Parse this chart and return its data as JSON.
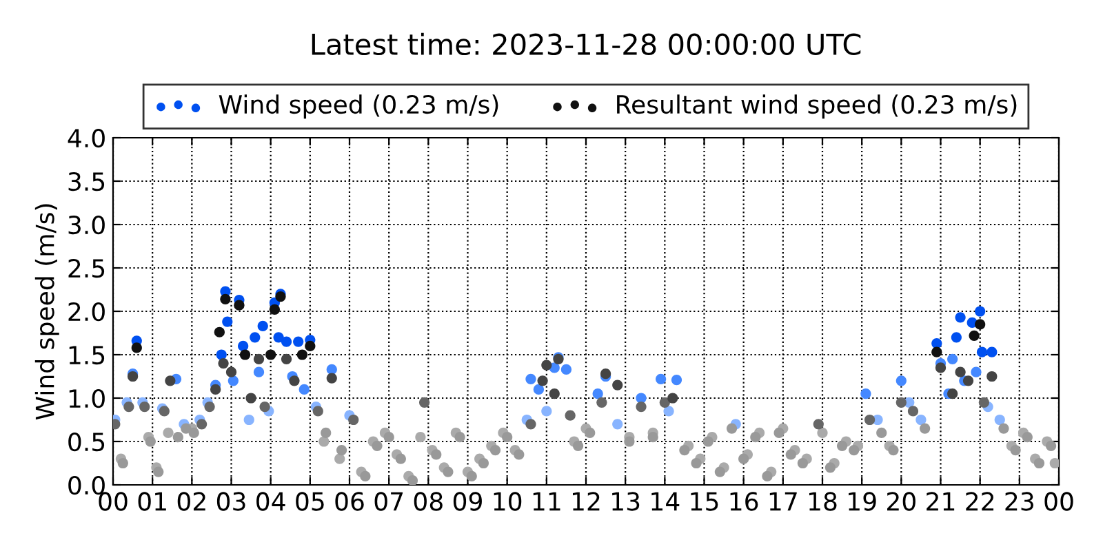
{
  "chart_data": {
    "type": "scatter",
    "title": "Latest time: 2023-11-28 00:00:00 UTC",
    "ylabel": "Wind speed (m/s)",
    "xlim": [
      0,
      24
    ],
    "xticks": [
      {
        "value": 0,
        "label": "00"
      },
      {
        "value": 1,
        "label": "01"
      },
      {
        "value": 2,
        "label": "02"
      },
      {
        "value": 3,
        "label": "03"
      },
      {
        "value": 4,
        "label": "04"
      },
      {
        "value": 5,
        "label": "05"
      },
      {
        "value": 6,
        "label": "06"
      },
      {
        "value": 7,
        "label": "07"
      },
      {
        "value": 8,
        "label": "08"
      },
      {
        "value": 9,
        "label": "09"
      },
      {
        "value": 10,
        "label": "10"
      },
      {
        "value": 11,
        "label": "11"
      },
      {
        "value": 12,
        "label": "12"
      },
      {
        "value": 13,
        "label": "13"
      },
      {
        "value": 14,
        "label": "14"
      },
      {
        "value": 15,
        "label": "15"
      },
      {
        "value": 16,
        "label": "16"
      },
      {
        "value": 17,
        "label": "17"
      },
      {
        "value": 18,
        "label": "18"
      },
      {
        "value": 19,
        "label": "19"
      },
      {
        "value": 20,
        "label": "20"
      },
      {
        "value": 21,
        "label": "21"
      },
      {
        "value": 22,
        "label": "22"
      },
      {
        "value": 23,
        "label": "23"
      },
      {
        "value": 24,
        "label": "00"
      }
    ],
    "ylim": [
      0,
      4
    ],
    "yticks": [
      {
        "value": 0,
        "label": "0.0"
      },
      {
        "value": 0.5,
        "label": "0.5"
      },
      {
        "value": 1,
        "label": "1.0"
      },
      {
        "value": 1.5,
        "label": "1.5"
      },
      {
        "value": 2,
        "label": "2.0"
      },
      {
        "value": 2.5,
        "label": "2.5"
      },
      {
        "value": 3,
        "label": "3.0"
      },
      {
        "value": 3.5,
        "label": "3.5"
      },
      {
        "value": 4,
        "label": "4.0"
      }
    ],
    "grid": true,
    "legend": "top",
    "marker": "circle",
    "series": [
      {
        "name": "Wind speed (0.23 m/s)",
        "color": "#0050f0",
        "x": [
          0.05,
          0.2,
          0.35,
          0.5,
          0.6,
          0.75,
          0.9,
          1.1,
          1.25,
          1.4,
          1.6,
          1.8,
          2.0,
          2.2,
          2.4,
          2.6,
          2.75,
          2.85,
          2.9,
          3.05,
          3.2,
          3.3,
          3.45,
          3.6,
          3.7,
          3.8,
          3.95,
          4.1,
          4.2,
          4.25,
          4.4,
          4.55,
          4.7,
          4.85,
          5.0,
          5.15,
          5.35,
          5.55,
          5.75,
          6.0,
          6.3,
          6.6,
          6.9,
          7.2,
          7.5,
          7.8,
          8.1,
          8.4,
          8.7,
          9.0,
          9.3,
          9.6,
          9.9,
          10.2,
          10.5,
          10.6,
          10.8,
          11.0,
          11.2,
          11.3,
          11.5,
          11.7,
          12.0,
          12.3,
          12.5,
          12.8,
          13.1,
          13.4,
          13.7,
          13.9,
          14.1,
          14.3,
          14.6,
          14.9,
          15.2,
          15.5,
          15.8,
          16.1,
          16.4,
          16.7,
          17.0,
          17.3,
          17.6,
          18.0,
          18.3,
          18.6,
          18.9,
          19.1,
          19.4,
          19.7,
          20.0,
          20.2,
          20.5,
          20.9,
          21.0,
          21.2,
          21.3,
          21.4,
          21.5,
          21.6,
          21.8,
          21.9,
          22.0,
          22.05,
          22.2,
          22.3,
          22.5,
          22.8,
          23.1,
          23.4,
          23.7,
          23.9
        ],
        "values": [
          0.75,
          0.3,
          0.95,
          1.28,
          1.66,
          0.95,
          0.55,
          0.2,
          0.88,
          0.6,
          1.22,
          0.7,
          0.65,
          0.75,
          0.95,
          1.15,
          1.5,
          2.23,
          1.88,
          1.2,
          2.13,
          1.6,
          0.75,
          1.7,
          1.3,
          1.83,
          0.85,
          2.1,
          1.7,
          2.2,
          1.65,
          1.25,
          1.65,
          1.1,
          1.67,
          0.9,
          0.5,
          1.33,
          0.3,
          0.8,
          0.15,
          0.5,
          0.6,
          0.35,
          0.1,
          0.55,
          0.4,
          0.2,
          0.6,
          0.15,
          0.3,
          0.45,
          0.6,
          0.4,
          0.75,
          1.22,
          1.1,
          0.85,
          1.35,
          1.47,
          1.33,
          0.5,
          0.65,
          1.05,
          1.25,
          0.7,
          0.55,
          1.0,
          0.6,
          1.22,
          0.85,
          1.21,
          0.45,
          0.3,
          0.55,
          0.2,
          0.7,
          0.35,
          0.6,
          0.15,
          0.65,
          0.4,
          0.3,
          0.6,
          0.25,
          0.5,
          0.45,
          1.05,
          0.75,
          0.45,
          1.2,
          0.95,
          0.75,
          1.63,
          1.4,
          1.05,
          1.45,
          1.7,
          1.93,
          1.2,
          1.87,
          1.3,
          2.0,
          1.53,
          0.9,
          1.53,
          0.75,
          0.45,
          0.6,
          0.3,
          0.5,
          0.25
        ],
        "colors": [
          "#88b4ff",
          "#aaaaaa",
          "#88b4ff",
          "#4488ff",
          "#0050f0",
          "#88b4ff",
          "#aaaaaa",
          "#aaaaaa",
          "#88b4ff",
          "#aaaaaa",
          "#4488ff",
          "#88b4ff",
          "#aaaaaa",
          "#88b4ff",
          "#88b4ff",
          "#4488ff",
          "#0050f0",
          "#0050f0",
          "#0050f0",
          "#4488ff",
          "#0050f0",
          "#0050f0",
          "#88b4ff",
          "#0050f0",
          "#4488ff",
          "#0050f0",
          "#88b4ff",
          "#0050f0",
          "#0050f0",
          "#0050f0",
          "#0050f0",
          "#4488ff",
          "#0050f0",
          "#4488ff",
          "#0050f0",
          "#88b4ff",
          "#aaaaaa",
          "#4488ff",
          "#aaaaaa",
          "#88b4ff",
          "#aaaaaa",
          "#aaaaaa",
          "#aaaaaa",
          "#aaaaaa",
          "#aaaaaa",
          "#aaaaaa",
          "#aaaaaa",
          "#aaaaaa",
          "#aaaaaa",
          "#aaaaaa",
          "#aaaaaa",
          "#aaaaaa",
          "#aaaaaa",
          "#aaaaaa",
          "#88b4ff",
          "#4488ff",
          "#4488ff",
          "#88b4ff",
          "#4488ff",
          "#4488ff",
          "#4488ff",
          "#aaaaaa",
          "#aaaaaa",
          "#4488ff",
          "#4488ff",
          "#88b4ff",
          "#aaaaaa",
          "#4488ff",
          "#aaaaaa",
          "#4488ff",
          "#88b4ff",
          "#4488ff",
          "#aaaaaa",
          "#aaaaaa",
          "#aaaaaa",
          "#aaaaaa",
          "#88b4ff",
          "#aaaaaa",
          "#aaaaaa",
          "#aaaaaa",
          "#aaaaaa",
          "#aaaaaa",
          "#aaaaaa",
          "#aaaaaa",
          "#aaaaaa",
          "#aaaaaa",
          "#aaaaaa",
          "#4488ff",
          "#88b4ff",
          "#aaaaaa",
          "#4488ff",
          "#88b4ff",
          "#88b4ff",
          "#0050f0",
          "#4488ff",
          "#4488ff",
          "#4488ff",
          "#0050f0",
          "#0050f0",
          "#4488ff",
          "#0050f0",
          "#4488ff",
          "#0050f0",
          "#0050f0",
          "#88b4ff",
          "#0050f0",
          "#88b4ff",
          "#aaaaaa",
          "#aaaaaa",
          "#aaaaaa",
          "#aaaaaa",
          "#aaaaaa"
        ]
      },
      {
        "name": "Resultant wind speed (0.23 m/s)",
        "color": "#111111",
        "x": [
          0.05,
          0.25,
          0.4,
          0.5,
          0.6,
          0.8,
          0.95,
          1.15,
          1.3,
          1.45,
          1.65,
          1.85,
          2.05,
          2.25,
          2.45,
          2.6,
          2.7,
          2.8,
          2.85,
          3.0,
          3.2,
          3.35,
          3.5,
          3.7,
          3.85,
          4.0,
          4.1,
          4.25,
          4.4,
          4.6,
          4.8,
          5.0,
          5.2,
          5.4,
          5.55,
          5.8,
          6.1,
          6.4,
          6.7,
          7.0,
          7.3,
          7.6,
          7.9,
          8.2,
          8.5,
          8.8,
          9.1,
          9.4,
          9.7,
          10.0,
          10.3,
          10.6,
          10.9,
          11.0,
          11.2,
          11.3,
          11.6,
          11.8,
          12.1,
          12.4,
          12.5,
          12.8,
          13.1,
          13.4,
          13.7,
          14.0,
          14.2,
          14.5,
          14.8,
          15.1,
          15.4,
          15.7,
          16.0,
          16.3,
          16.6,
          16.9,
          17.2,
          17.5,
          17.9,
          18.2,
          18.5,
          18.8,
          19.2,
          19.5,
          19.8,
          20.0,
          20.3,
          20.6,
          20.9,
          21.0,
          21.3,
          21.5,
          21.7,
          21.85,
          22.0,
          22.1,
          22.3,
          22.6,
          22.9,
          23.2,
          23.5,
          23.8
        ],
        "values": [
          0.7,
          0.25,
          0.9,
          1.25,
          1.58,
          0.9,
          0.5,
          0.15,
          0.85,
          1.2,
          0.55,
          0.65,
          0.6,
          0.7,
          0.9,
          1.1,
          1.76,
          1.4,
          2.14,
          1.3,
          2.07,
          1.5,
          1.0,
          1.45,
          0.9,
          1.5,
          2.02,
          2.17,
          1.45,
          1.2,
          1.5,
          1.6,
          0.85,
          0.6,
          1.23,
          0.4,
          0.75,
          0.1,
          0.45,
          0.55,
          0.3,
          0.05,
          0.95,
          0.35,
          0.15,
          0.55,
          0.1,
          0.25,
          0.4,
          0.55,
          0.35,
          0.7,
          1.2,
          1.38,
          1.05,
          1.45,
          0.8,
          0.45,
          0.6,
          0.95,
          1.28,
          1.15,
          0.5,
          0.9,
          0.55,
          0.95,
          1.0,
          0.4,
          0.25,
          0.5,
          0.15,
          0.65,
          0.3,
          0.55,
          0.1,
          0.6,
          0.35,
          0.25,
          0.7,
          0.2,
          0.45,
          0.4,
          0.75,
          0.6,
          0.4,
          0.95,
          0.85,
          0.65,
          1.53,
          1.35,
          1.05,
          1.3,
          1.2,
          1.72,
          1.85,
          0.95,
          1.25,
          0.65,
          0.4,
          0.55,
          0.25,
          0.45
        ],
        "colors": [
          "#666666",
          "#999999",
          "#666666",
          "#444444",
          "#111111",
          "#666666",
          "#999999",
          "#999999",
          "#666666",
          "#444444",
          "#999999",
          "#999999",
          "#999999",
          "#666666",
          "#666666",
          "#444444",
          "#111111",
          "#444444",
          "#111111",
          "#444444",
          "#111111",
          "#111111",
          "#444444",
          "#444444",
          "#666666",
          "#111111",
          "#111111",
          "#111111",
          "#444444",
          "#444444",
          "#111111",
          "#111111",
          "#666666",
          "#999999",
          "#444444",
          "#999999",
          "#666666",
          "#999999",
          "#999999",
          "#999999",
          "#999999",
          "#999999",
          "#666666",
          "#999999",
          "#999999",
          "#999999",
          "#999999",
          "#999999",
          "#999999",
          "#999999",
          "#999999",
          "#666666",
          "#444444",
          "#444444",
          "#444444",
          "#444444",
          "#666666",
          "#999999",
          "#999999",
          "#666666",
          "#444444",
          "#444444",
          "#999999",
          "#666666",
          "#999999",
          "#666666",
          "#444444",
          "#999999",
          "#999999",
          "#999999",
          "#999999",
          "#999999",
          "#999999",
          "#999999",
          "#999999",
          "#999999",
          "#999999",
          "#999999",
          "#666666",
          "#999999",
          "#999999",
          "#999999",
          "#666666",
          "#999999",
          "#999999",
          "#666666",
          "#666666",
          "#999999",
          "#111111",
          "#444444",
          "#444444",
          "#444444",
          "#444444",
          "#111111",
          "#111111",
          "#666666",
          "#444444",
          "#999999",
          "#999999",
          "#999999",
          "#999999",
          "#999999"
        ]
      }
    ]
  }
}
